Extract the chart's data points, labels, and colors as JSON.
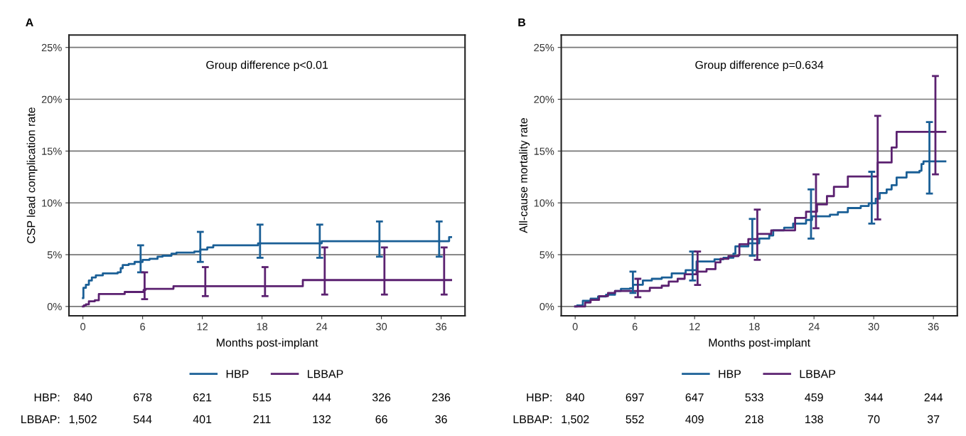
{
  "chart_data": [
    {
      "type": "step",
      "title": "A",
      "xlabel": "Months post-implant",
      "ylabel": "CSP lead complication rate",
      "xlim": [
        -1.4,
        38.4
      ],
      "ylim": [
        -0.9,
        26.2
      ],
      "xticks": [
        0,
        6,
        12,
        18,
        24,
        30,
        36
      ],
      "yticks": [
        {
          "value": 0,
          "label": "0%"
        },
        {
          "value": 5,
          "label": "5%"
        },
        {
          "value": 10,
          "label": "10%"
        },
        {
          "value": 15,
          "label": "15%"
        },
        {
          "value": 20,
          "label": "20%"
        },
        {
          "value": 25,
          "label": "25%"
        }
      ],
      "grid": "y",
      "legend": "bottom",
      "line_style": "solid",
      "series": [
        {
          "name": "HBP",
          "color": "#1a5f96",
          "x": [
            0,
            0.05,
            0.3,
            0.6,
            0.9,
            1.3,
            2.0,
            3.5,
            3.8,
            4.0,
            4.6,
            5.2,
            5.8,
            6.0,
            6.7,
            7.5,
            8.0,
            8.9,
            9.4,
            11.2,
            11.8,
            12.5,
            13.1,
            17.6,
            17.8,
            23.8,
            24.0,
            29.8,
            35.8,
            36.8,
            37.0
          ],
          "values": [
            0.8,
            1.8,
            2.1,
            2.5,
            2.8,
            3.0,
            3.2,
            3.3,
            3.7,
            4.0,
            4.1,
            4.3,
            4.3,
            4.5,
            4.6,
            4.8,
            4.9,
            5.1,
            5.2,
            5.3,
            5.5,
            5.7,
            5.9,
            6.1,
            6.1,
            6.1,
            6.3,
            6.3,
            6.3,
            6.7,
            6.7
          ],
          "errors": [
            null,
            null,
            null,
            null,
            null,
            null,
            null,
            null,
            null,
            null,
            null,
            null,
            [
              3.3,
              5.9
            ],
            null,
            null,
            null,
            null,
            null,
            null,
            null,
            [
              4.3,
              7.2
            ],
            null,
            null,
            null,
            [
              4.7,
              7.9
            ],
            [
              4.7,
              7.9
            ],
            null,
            [
              4.8,
              8.2
            ],
            [
              4.8,
              8.2
            ],
            null,
            null
          ]
        },
        {
          "name": "LBBAP",
          "color": "#5b2170",
          "x": [
            0,
            0.1,
            0.3,
            0.6,
            1.2,
            1.6,
            4.2,
            6.1,
            6.2,
            6.3,
            9.1,
            12.3,
            18.3,
            22.1,
            24.3,
            30.3,
            36.3,
            37.0
          ],
          "values": [
            0,
            0.1,
            0.2,
            0.5,
            0.6,
            1.2,
            1.4,
            1.6,
            1.6,
            1.7,
            1.95,
            1.95,
            1.95,
            2.55,
            2.55,
            2.55,
            2.55,
            2.55
          ],
          "errors": [
            null,
            null,
            null,
            null,
            null,
            null,
            null,
            null,
            [
              0.7,
              3.3
            ],
            null,
            null,
            [
              1.0,
              3.8
            ],
            [
              1.0,
              3.8
            ],
            null,
            [
              1.15,
              5.7
            ],
            [
              1.15,
              5.7
            ],
            [
              1.15,
              5.7
            ],
            null
          ]
        }
      ],
      "annotations": [
        "Group difference p<0.01",
        "HBP:",
        "840",
        "678",
        "621",
        "515",
        "444",
        "326",
        "236",
        "LBBAP:",
        "1,502",
        "544",
        "401",
        "211",
        "132",
        "66",
        "36"
      ]
    },
    {
      "type": "step",
      "title": "B",
      "xlabel": "Months post-implant",
      "ylabel": "All-cause mortality rate",
      "xlim": [
        -1.4,
        38.4
      ],
      "ylim": [
        -0.9,
        26.2
      ],
      "xticks": [
        0,
        6,
        12,
        18,
        24,
        30,
        36
      ],
      "yticks": [
        {
          "value": 0,
          "label": "0%"
        },
        {
          "value": 5,
          "label": "5%"
        },
        {
          "value": 10,
          "label": "10%"
        },
        {
          "value": 15,
          "label": "15%"
        },
        {
          "value": 20,
          "label": "20%"
        },
        {
          "value": 25,
          "label": "25%"
        }
      ],
      "grid": "y",
      "legend": "bottom",
      "line_style": "solid",
      "series": [
        {
          "name": "HBP",
          "color": "#1a5f96",
          "x": [
            0,
            0.2,
            0.77,
            1.55,
            2.3,
            3.1,
            4.0,
            4.6,
            5.5,
            5.8,
            6.8,
            7.7,
            8.7,
            9.7,
            11.1,
            11.8,
            12.2,
            14.0,
            14.9,
            15.9,
            16.1,
            17.4,
            17.8,
            18.5,
            19.5,
            19.9,
            21.0,
            21.9,
            23.2,
            23.7,
            23.8,
            25.6,
            26.4,
            27.4,
            28.7,
            29.5,
            29.8,
            30.2,
            30.6,
            31.3,
            31.8,
            32.3,
            33.3,
            34.6,
            34.8,
            35.0,
            35.6,
            37.2
          ],
          "values": [
            0,
            0.1,
            0.55,
            0.75,
            0.96,
            1.13,
            1.5,
            1.7,
            1.75,
            2.1,
            2.5,
            2.67,
            2.8,
            3.2,
            3.5,
            3.5,
            4.35,
            4.55,
            4.7,
            5.1,
            5.8,
            6.1,
            6.1,
            6.55,
            6.85,
            7.35,
            7.6,
            8.0,
            8.35,
            8.35,
            8.7,
            8.85,
            9.1,
            9.5,
            9.7,
            9.95,
            9.95,
            10.4,
            10.95,
            11.3,
            11.7,
            12.45,
            12.95,
            13.1,
            13.75,
            14.0,
            14.0,
            14.0
          ],
          "errors": [
            null,
            null,
            null,
            null,
            null,
            null,
            null,
            null,
            null,
            [
              1.3,
              3.37
            ],
            null,
            null,
            null,
            null,
            null,
            [
              2.5,
              5.3
            ],
            null,
            null,
            null,
            null,
            null,
            null,
            [
              4.9,
              8.45
            ],
            null,
            null,
            null,
            null,
            null,
            null,
            [
              6.55,
              11.3
            ],
            null,
            null,
            null,
            null,
            null,
            null,
            [
              8.0,
              13.0
            ],
            null,
            null,
            null,
            null,
            null,
            null,
            null,
            null,
            null,
            [
              10.9,
              17.8
            ],
            null
          ]
        },
        {
          "name": "LBBAP",
          "color": "#5b2170",
          "x": [
            0,
            1.0,
            1.55,
            2.4,
            3.3,
            4.0,
            6.3,
            6.8,
            7.5,
            8.7,
            9.4,
            10.3,
            11.0,
            12.2,
            12.3,
            13.2,
            14.1,
            14.6,
            15.4,
            16.4,
            16.5,
            17.4,
            18.3,
            19.7,
            22.1,
            23.2,
            24.2,
            24.3,
            25.3,
            26.0,
            27.4,
            30.4,
            31.8,
            32.3,
            36.2,
            37.2
          ],
          "values": [
            0,
            0.38,
            0.63,
            1.0,
            1.3,
            1.5,
            1.5,
            1.5,
            1.8,
            2.0,
            2.4,
            2.67,
            3.1,
            3.37,
            3.37,
            3.6,
            4.25,
            4.6,
            4.85,
            4.95,
            6.0,
            6.5,
            7.0,
            7.35,
            8.55,
            9.15,
            9.15,
            9.85,
            10.65,
            11.55,
            12.55,
            13.9,
            15.35,
            16.85,
            16.85,
            16.85
          ],
          "errors": [
            null,
            null,
            null,
            null,
            null,
            null,
            [
              0.9,
              2.67
            ],
            null,
            null,
            null,
            null,
            null,
            null,
            null,
            [
              2.08,
              5.3
            ],
            null,
            null,
            null,
            null,
            null,
            null,
            null,
            [
              4.5,
              9.35
            ],
            null,
            null,
            null,
            [
              7.55,
              12.75
            ],
            null,
            null,
            null,
            null,
            [
              8.4,
              18.4
            ],
            null,
            null,
            [
              12.75,
              22.25
            ],
            null
          ]
        }
      ],
      "annotations": [
        "Group difference p=0.634",
        "HBP:",
        "840",
        "697",
        "647",
        "533",
        "459",
        "344",
        "244",
        "LBBAP:",
        "1,502",
        "552",
        "409",
        "218",
        "138",
        "70",
        "37"
      ]
    }
  ]
}
